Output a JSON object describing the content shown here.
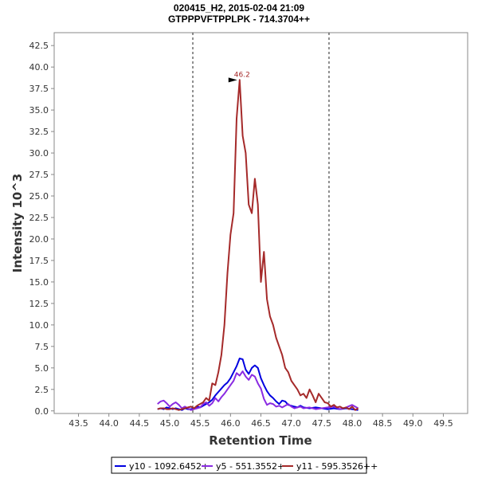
{
  "chart_data": {
    "type": "line",
    "title": "020415_H2, 2015-02-04 21:09",
    "subtitle": "GTPPPVFTPPLPK - 714.3704++",
    "xlabel": "Retention Time",
    "ylabel": "Intensity 10^3",
    "xlim": [
      43.1,
      49.9
    ],
    "ylim": [
      -0.3,
      44.0
    ],
    "x_ticks": [
      "43.5",
      "44.0",
      "44.5",
      "45.0",
      "45.5",
      "46.0",
      "46.5",
      "47.0",
      "47.5",
      "48.0",
      "48.5",
      "49.0",
      "49.5"
    ],
    "y_ticks": [
      "0.0",
      "2.5",
      "5.0",
      "7.5",
      "10.0",
      "12.5",
      "15.0",
      "17.5",
      "20.0",
      "22.5",
      "25.0",
      "27.5",
      "30.0",
      "32.5",
      "35.0",
      "37.5",
      "40.0",
      "42.5"
    ],
    "integration_bounds": [
      45.38,
      47.62
    ],
    "peak_annotation": {
      "x": 46.15,
      "y": 38.5,
      "label": "46.2",
      "color": "#a52a2a"
    },
    "legend_position": "bottom-center",
    "series": [
      {
        "name": "y10 - 1092.6452+",
        "color": "#0000e0",
        "x": [
          44.8,
          44.85,
          44.9,
          44.95,
          45.0,
          45.05,
          45.1,
          45.15,
          45.2,
          45.25,
          45.3,
          45.35,
          45.4,
          45.45,
          45.5,
          45.55,
          45.6,
          45.65,
          45.7,
          45.75,
          45.8,
          45.85,
          45.9,
          45.95,
          46.0,
          46.05,
          46.1,
          46.15,
          46.2,
          46.25,
          46.3,
          46.35,
          46.4,
          46.45,
          46.5,
          46.55,
          46.6,
          46.65,
          46.7,
          46.75,
          46.8,
          46.85,
          46.9,
          46.95,
          47.0,
          47.05,
          47.1,
          47.15,
          47.2,
          47.3,
          47.4,
          47.5,
          47.6,
          47.7,
          47.8,
          47.9,
          48.0,
          48.1
        ],
        "values": [
          0.2,
          0.3,
          0.2,
          0.4,
          0.3,
          0.2,
          0.3,
          0.2,
          0.1,
          0.3,
          0.2,
          0.2,
          0.3,
          0.5,
          0.4,
          0.6,
          0.8,
          1.0,
          1.3,
          1.8,
          2.2,
          2.6,
          3.0,
          3.3,
          3.8,
          4.5,
          5.2,
          6.1,
          6.0,
          4.8,
          4.3,
          5.0,
          5.3,
          5.0,
          3.8,
          3.0,
          2.3,
          1.8,
          1.5,
          1.1,
          0.8,
          1.2,
          1.1,
          0.7,
          0.6,
          0.5,
          0.4,
          0.6,
          0.4,
          0.3,
          0.4,
          0.3,
          0.2,
          0.3,
          0.2,
          0.3,
          0.2,
          0.1
        ]
      },
      {
        "name": "y5 - 551.3552+",
        "color": "#8a2be2",
        "x": [
          44.8,
          44.85,
          44.9,
          44.95,
          45.0,
          45.05,
          45.1,
          45.15,
          45.2,
          45.25,
          45.3,
          45.35,
          45.4,
          45.45,
          45.5,
          45.55,
          45.6,
          45.65,
          45.7,
          45.75,
          45.8,
          45.85,
          45.9,
          45.95,
          46.0,
          46.05,
          46.1,
          46.15,
          46.2,
          46.25,
          46.3,
          46.35,
          46.4,
          46.45,
          46.5,
          46.55,
          46.6,
          46.65,
          46.7,
          46.75,
          46.8,
          46.85,
          46.9,
          46.95,
          47.0,
          47.05,
          47.1,
          47.15,
          47.2,
          47.3,
          47.4,
          47.5,
          47.6,
          47.7,
          47.8,
          47.9,
          48.0,
          48.1
        ],
        "values": [
          0.8,
          1.1,
          1.2,
          0.9,
          0.5,
          0.8,
          1.0,
          0.7,
          0.3,
          0.5,
          0.3,
          0.1,
          0.2,
          0.3,
          0.4,
          0.8,
          1.0,
          0.6,
          0.9,
          1.5,
          1.1,
          1.6,
          2.0,
          2.5,
          3.0,
          3.5,
          4.4,
          4.1,
          4.6,
          4.0,
          3.6,
          4.2,
          4.0,
          3.2,
          2.6,
          1.4,
          0.7,
          0.9,
          0.8,
          0.5,
          0.6,
          0.4,
          0.6,
          0.8,
          0.5,
          0.3,
          0.4,
          0.5,
          0.3,
          0.4,
          0.2,
          0.3,
          0.4,
          0.5,
          0.2,
          0.4,
          0.7,
          0.3
        ]
      },
      {
        "name": "y11 - 595.3526++",
        "color": "#a52a2a",
        "x": [
          44.8,
          44.85,
          44.9,
          44.95,
          45.0,
          45.05,
          45.1,
          45.15,
          45.2,
          45.25,
          45.3,
          45.35,
          45.4,
          45.45,
          45.5,
          45.55,
          45.6,
          45.65,
          45.7,
          45.75,
          45.8,
          45.85,
          45.9,
          45.95,
          46.0,
          46.05,
          46.1,
          46.15,
          46.2,
          46.25,
          46.3,
          46.35,
          46.4,
          46.45,
          46.5,
          46.55,
          46.6,
          46.65,
          46.7,
          46.75,
          46.8,
          46.85,
          46.9,
          46.95,
          47.0,
          47.05,
          47.1,
          47.15,
          47.2,
          47.25,
          47.3,
          47.35,
          47.4,
          47.45,
          47.5,
          47.55,
          47.6,
          47.65,
          47.7,
          47.75,
          47.8,
          47.85,
          47.9,
          47.95,
          48.0,
          48.05,
          48.1
        ],
        "values": [
          0.2,
          0.3,
          0.3,
          0.2,
          0.2,
          0.3,
          0.2,
          0.1,
          0.2,
          0.3,
          0.4,
          0.5,
          0.3,
          0.6,
          0.8,
          1.0,
          1.5,
          1.2,
          3.2,
          3.0,
          4.5,
          6.5,
          10.0,
          16.0,
          20.5,
          23.0,
          34.0,
          38.5,
          32.0,
          30.0,
          24.0,
          23.0,
          27.0,
          24.0,
          15.0,
          18.5,
          13.0,
          11.0,
          10.0,
          8.5,
          7.5,
          6.5,
          5.0,
          4.5,
          3.5,
          3.0,
          2.5,
          1.8,
          2.0,
          1.5,
          2.5,
          1.8,
          1.0,
          2.0,
          1.5,
          1.0,
          0.9,
          0.5,
          0.7,
          0.4,
          0.5,
          0.3,
          0.4,
          0.2,
          0.5,
          0.1,
          0.3
        ]
      }
    ]
  }
}
